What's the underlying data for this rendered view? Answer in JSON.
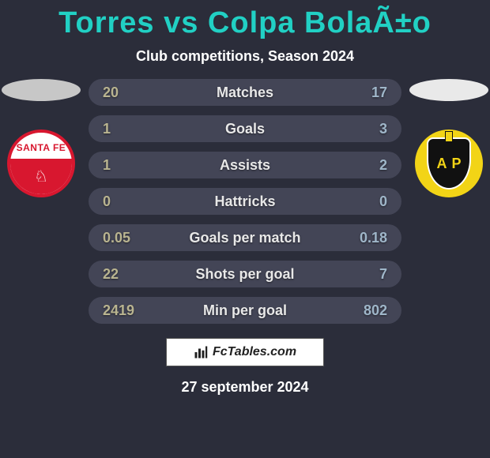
{
  "page": {
    "background_color": "#2b2d3a",
    "text_color": "#ffffff",
    "title_color": "#21d0c4",
    "title": "Torres vs Colpa BolaÃ±o",
    "subtitle": "Club competitions, Season 2024",
    "date": "27 september 2024"
  },
  "left_team": {
    "ellipse_color": "#c7c7c7",
    "badge_text": "SANTA FE",
    "primary_color": "#d8172f",
    "secondary_color": "#ffffff"
  },
  "right_team": {
    "ellipse_color": "#e9e9e9",
    "badge_left_letter": "A",
    "badge_right_letter": "P",
    "primary_color": "#f2d416",
    "secondary_color": "#111111"
  },
  "stats": {
    "pill_bg": "#434556",
    "label_color": "#e8e8e8",
    "left_value_color": "#b9b490",
    "right_value_color": "#9fb6c9",
    "font_size": 18,
    "rows": [
      {
        "label": "Matches",
        "left": "20",
        "right": "17"
      },
      {
        "label": "Goals",
        "left": "1",
        "right": "3"
      },
      {
        "label": "Assists",
        "left": "1",
        "right": "2"
      },
      {
        "label": "Hattricks",
        "left": "0",
        "right": "0"
      },
      {
        "label": "Goals per match",
        "left": "0.05",
        "right": "0.18"
      },
      {
        "label": "Shots per goal",
        "left": "22",
        "right": "7"
      },
      {
        "label": "Min per goal",
        "left": "2419",
        "right": "802"
      }
    ]
  },
  "footer": {
    "site_name": "FcTables.com",
    "bg": "#ffffff",
    "text_color": "#222222"
  }
}
